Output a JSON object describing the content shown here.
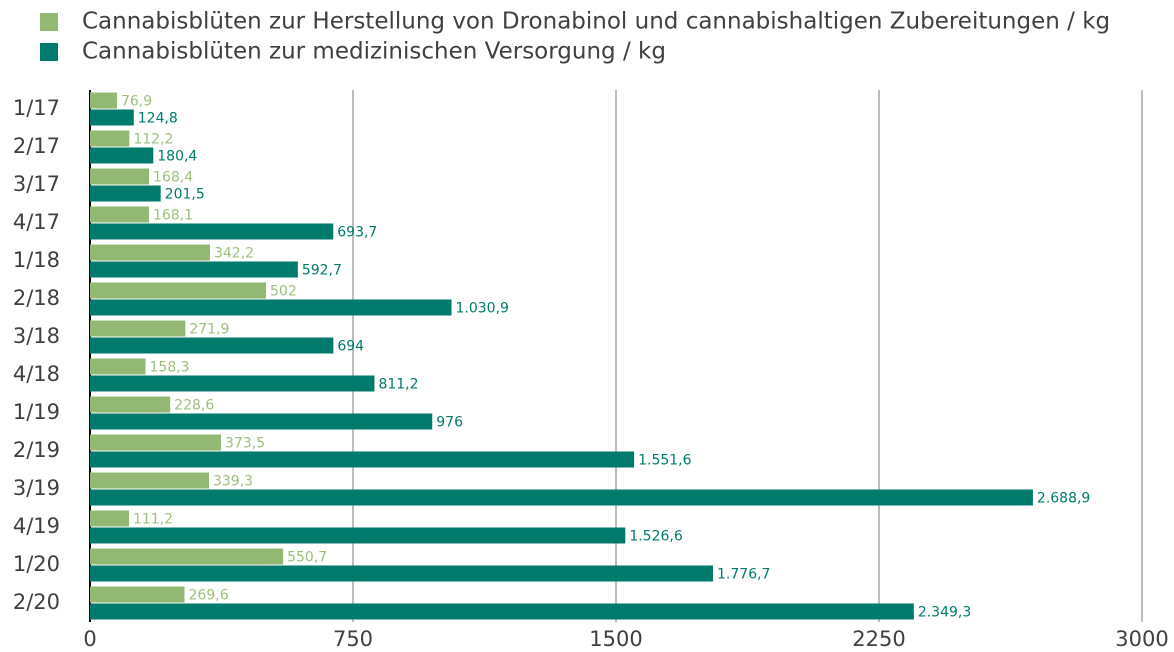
{
  "chart_data": {
    "type": "hbar",
    "categories": [
      "1/17",
      "2/17",
      "3/17",
      "4/17",
      "1/18",
      "2/18",
      "3/18",
      "4/18",
      "1/19",
      "2/19",
      "3/19",
      "4/19",
      "1/20",
      "2/20"
    ],
    "series": [
      {
        "name": "Cannabisblüten zur Herstellung von Dronabinol und cannabishaltigen Zubereitungen / kg",
        "color": "#93b874",
        "label_color": "#9dc07c",
        "values": [
          76.9,
          112.2,
          168.4,
          168.1,
          342.2,
          502,
          271.9,
          158.3,
          228.6,
          373.5,
          339.3,
          111.2,
          550.7,
          269.6
        ],
        "value_labels": [
          "76,9",
          "112,2",
          "168,4",
          "168,1",
          "342,2",
          "502",
          "271,9",
          "158,3",
          "228,6",
          "373,5",
          "339,3",
          "111,2",
          "550,7",
          "269,6"
        ]
      },
      {
        "name": "Cannabisblüten zur medizinischen Versorgung  / kg",
        "color": "#007a6b",
        "label_color": "#007a6b",
        "values": [
          124.8,
          180.4,
          201.5,
          693.7,
          592.7,
          1030.9,
          694,
          811.2,
          976,
          1551.6,
          2688.9,
          1526.6,
          1776.7,
          2349.3
        ],
        "value_labels": [
          "124,8",
          "180,4",
          "201,5",
          "693,7",
          "592,7",
          "1.030,9",
          "694",
          "811,2",
          "976",
          "1.551,6",
          "2.688,9",
          "1.526,6",
          "1.776,7",
          "2.349,3"
        ]
      }
    ],
    "xlim": [
      0,
      3000
    ],
    "xticks": [
      0,
      750,
      1500,
      2250,
      3000
    ],
    "grid": true,
    "legend": "top-left"
  }
}
